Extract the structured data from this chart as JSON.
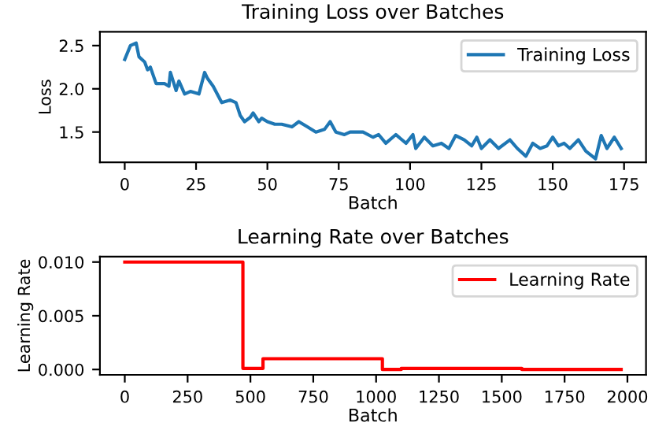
{
  "chart_data": [
    {
      "type": "line",
      "title": "Training Loss over Batches",
      "xlabel": "Batch",
      "ylabel": "Loss",
      "legend": "top right",
      "grid": false,
      "series": [
        {
          "name": "Training Loss",
          "color": "#1f77b4",
          "x": [
            0,
            2,
            4,
            5,
            7,
            8,
            9,
            11,
            14,
            15.5,
            16,
            18,
            19,
            21,
            23,
            26,
            28,
            29,
            31,
            34,
            37,
            39,
            40.5,
            42,
            44,
            45,
            47,
            48,
            50,
            52.6,
            55,
            58.6,
            61,
            64,
            67,
            70,
            72,
            74,
            77,
            79,
            83.5,
            87,
            89,
            91.5,
            95,
            98.6,
            101,
            102,
            105,
            108,
            111,
            113.6,
            116,
            119,
            121.6,
            123.4,
            125,
            128,
            131,
            135,
            137.6,
            140.6,
            143,
            145.6,
            148,
            150,
            152,
            154,
            156,
            159,
            161.6,
            165,
            167,
            169,
            171.6,
            174
          ],
          "values": [
            2.34,
            2.5,
            2.53,
            2.37,
            2.31,
            2.22,
            2.25,
            2.06,
            2.06,
            2.03,
            2.19,
            1.98,
            2.09,
            1.94,
            1.97,
            1.94,
            2.19,
            2.12,
            2.03,
            1.84,
            1.87,
            1.84,
            1.69,
            1.62,
            1.67,
            1.72,
            1.62,
            1.66,
            1.62,
            1.59,
            1.59,
            1.56,
            1.62,
            1.56,
            1.5,
            1.53,
            1.62,
            1.5,
            1.47,
            1.5,
            1.5,
            1.44,
            1.47,
            1.37,
            1.47,
            1.37,
            1.47,
            1.31,
            1.44,
            1.34,
            1.37,
            1.31,
            1.46,
            1.41,
            1.34,
            1.44,
            1.31,
            1.41,
            1.31,
            1.41,
            1.31,
            1.22,
            1.37,
            1.31,
            1.34,
            1.44,
            1.34,
            1.37,
            1.31,
            1.41,
            1.28,
            1.19,
            1.46,
            1.31,
            1.44,
            1.31
          ]
        }
      ],
      "xlim": [
        -8.7,
        182.7
      ],
      "xticks": [
        0,
        25,
        50,
        75,
        100,
        125,
        150,
        175
      ],
      "ylim": [
        1.15,
        2.66
      ],
      "yticks": [
        {
          "value": 1.5,
          "label": "1.5"
        },
        {
          "value": 2.0,
          "label": "2.0"
        },
        {
          "value": 2.5,
          "label": "2.5"
        }
      ]
    },
    {
      "type": "step",
      "title": "Learning Rate over Batches",
      "xlabel": "Batch",
      "ylabel": "Learning Rate",
      "legend": "top right",
      "grid": false,
      "series": [
        {
          "name": "Learning Rate",
          "color": "#ff0000",
          "x": [
            0,
            470,
            550,
            1025,
            1100,
            1580,
            1975
          ],
          "values": [
            0.01,
            0.0001,
            0.001,
            0,
            0.0001,
            0,
            0
          ]
        }
      ],
      "xlim": [
        -99,
        2074
      ],
      "xticks": [
        0,
        250,
        500,
        750,
        1000,
        1250,
        1500,
        1750,
        2000
      ],
      "ylim": [
        -0.0005,
        0.0105
      ],
      "yticks": [
        {
          "value": 0,
          "label": "0.000"
        },
        {
          "value": 0.005,
          "label": "0.005"
        },
        {
          "value": 0.01,
          "label": "0.010"
        }
      ]
    }
  ]
}
